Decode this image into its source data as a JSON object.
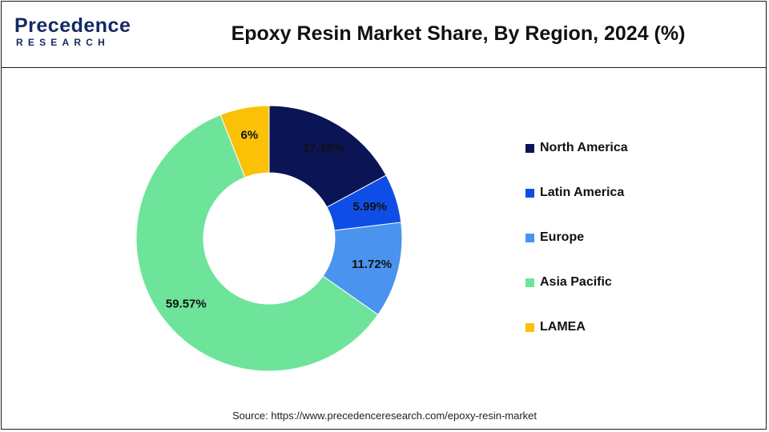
{
  "logo": {
    "top": "Precedence",
    "bottom": "RESEARCH"
  },
  "title": "Epoxy Resin Market Share, By Region, 2024 (%)",
  "source": "Source: https://www.precedenceresearch.com/epoxy-resin-market",
  "chart_data": {
    "type": "pie",
    "donut": true,
    "title": "Epoxy Resin Market Share, By Region, 2024 (%)",
    "categories": [
      "North America",
      "Latin America",
      "Europe",
      "Asia Pacific",
      "LAMEA"
    ],
    "values": [
      17.19,
      5.99,
      11.72,
      59.57,
      6
    ],
    "labels": [
      "17.19%",
      "5.99%",
      "11.72%",
      "59.57%",
      "6%"
    ],
    "colors": [
      "#0b1454",
      "#0f4ee6",
      "#4a93ef",
      "#6ee49b",
      "#fbc107"
    ],
    "legend_position": "right"
  }
}
